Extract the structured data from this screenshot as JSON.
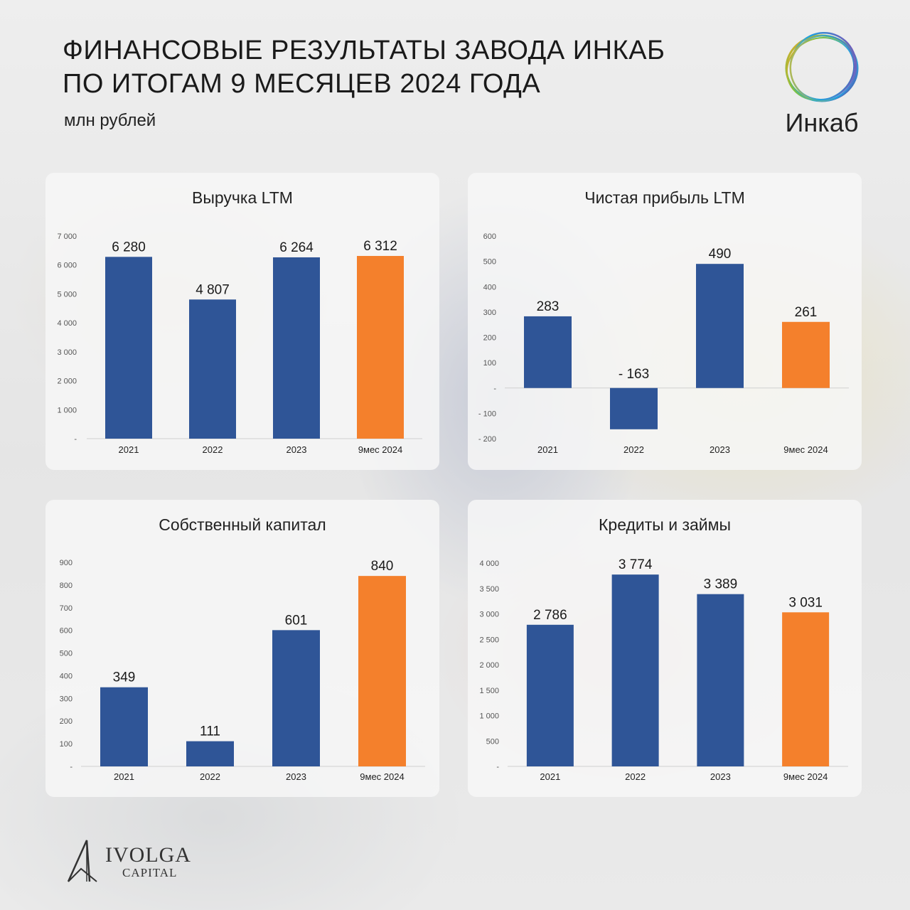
{
  "header": {
    "title_line1": "ФИНАНСОВЫЕ РЕЗУЛЬТАТЫ ЗАВОДА ИНКАБ",
    "title_line2": "ПО ИТОГАМ 9 МЕСЯЦЕВ 2024 ГОДА",
    "subtitle": "млн рублей"
  },
  "brand": {
    "logo_text": "Инкаб",
    "logo_icon": "colorful-rings-icon"
  },
  "footer": {
    "name": "IVOLGA",
    "sub": "CAPITAL",
    "icon": "ivolga-logo-icon"
  },
  "colors": {
    "bar": "#2f5597",
    "highlight": "#f4802c",
    "axis_text": "#555555",
    "label_text": "#1a1a1a"
  },
  "chart_data": [
    {
      "type": "bar",
      "title": "Выручка LTM",
      "categories": [
        "2021",
        "2022",
        "2023",
        "9мес 2024"
      ],
      "values": [
        6280,
        4807,
        6264,
        6312
      ],
      "value_labels": [
        "6 280",
        "4 807",
        "6 264",
        "6 312"
      ],
      "highlight_index": 3,
      "ylim": [
        0,
        7000
      ],
      "yticks": [
        0,
        1000,
        2000,
        3000,
        4000,
        5000,
        6000,
        7000
      ],
      "ytick_labels": [
        "-",
        "1 000",
        "2 000",
        "3 000",
        "4 000",
        "5 000",
        "6 000",
        "7 000"
      ]
    },
    {
      "type": "bar",
      "title": "Чистая прибыль LTM",
      "categories": [
        "2021",
        "2022",
        "2023",
        "9мес 2024"
      ],
      "values": [
        283,
        -163,
        490,
        261
      ],
      "value_labels": [
        "283",
        "- 163",
        "490",
        "261"
      ],
      "highlight_index": 3,
      "ylim": [
        -200,
        600
      ],
      "yticks": [
        -200,
        -100,
        0,
        100,
        200,
        300,
        400,
        500,
        600
      ],
      "ytick_labels": [
        "- 200",
        "- 100",
        "-",
        "100",
        "200",
        "300",
        "400",
        "500",
        "600"
      ]
    },
    {
      "type": "bar",
      "title": "Собственный капитал",
      "categories": [
        "2021",
        "2022",
        "2023",
        "9мес 2024"
      ],
      "values": [
        349,
        111,
        601,
        840
      ],
      "value_labels": [
        "349",
        "111",
        "601",
        "840"
      ],
      "highlight_index": 3,
      "ylim": [
        0,
        900
      ],
      "yticks": [
        0,
        100,
        200,
        300,
        400,
        500,
        600,
        700,
        800,
        900
      ],
      "ytick_labels": [
        "-",
        "100",
        "200",
        "300",
        "400",
        "500",
        "600",
        "700",
        "800",
        "900"
      ]
    },
    {
      "type": "bar",
      "title": "Кредиты и займы",
      "categories": [
        "2021",
        "2022",
        "2023",
        "9мес 2024"
      ],
      "values": [
        2786,
        3774,
        3389,
        3031
      ],
      "value_labels": [
        "2 786",
        "3 774",
        "3 389",
        "3 031"
      ],
      "highlight_index": 3,
      "ylim": [
        0,
        4000
      ],
      "yticks": [
        0,
        500,
        1000,
        1500,
        2000,
        2500,
        3000,
        3500,
        4000
      ],
      "ytick_labels": [
        "-",
        "500",
        "1 000",
        "1 500",
        "2 000",
        "2 500",
        "3 000",
        "3 500",
        "4 000"
      ]
    }
  ]
}
